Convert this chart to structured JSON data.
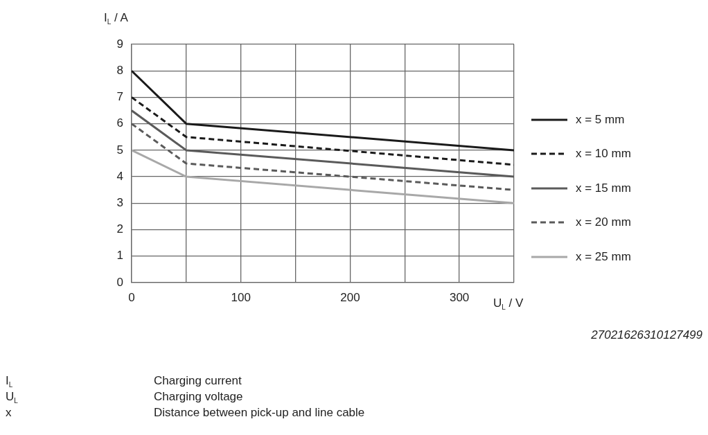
{
  "chart_data": {
    "type": "line",
    "ylabel": "I$_{L}$ / A",
    "xlabel": "U$_{L}$ / V",
    "x": [
      0,
      50,
      350
    ],
    "series": [
      {
        "name": "x = 5 mm",
        "color": "#1a1a1a",
        "line_style": "solid",
        "values": [
          8,
          6,
          5
        ]
      },
      {
        "name": "x = 10 mm",
        "color": "#1a1a1a",
        "line_style": "dashed",
        "values": [
          7,
          5.5,
          4.45
        ]
      },
      {
        "name": "x = 15 mm",
        "color": "#5a5a5a",
        "line_style": "solid",
        "values": [
          6.5,
          5,
          4
        ]
      },
      {
        "name": "x = 20 mm",
        "color": "#5a5a5a",
        "line_style": "dashed",
        "values": [
          6,
          4.5,
          3.5
        ]
      },
      {
        "name": "x = 25 mm",
        "color": "#a8a8a8",
        "line_style": "solid",
        "values": [
          5,
          4,
          3
        ]
      }
    ],
    "xlim": [
      0,
      350
    ],
    "xticks": [
      0,
      {
        "value": 50,
        "label": null
      },
      100,
      {
        "value": 150,
        "label": null
      },
      200,
      {
        "value": 250,
        "label": null
      },
      300,
      {
        "value": 350,
        "label": null
      }
    ],
    "ylim": [
      0,
      9
    ],
    "yticks": [
      0,
      1,
      2,
      3,
      4,
      5,
      6,
      7,
      8,
      9
    ],
    "grid": true,
    "legend": "right",
    "marker": "none",
    "annotations": [
      "27021626310127499",
      "I$_{L}$ Charging current",
      "U$_{L}$ Charging voltage",
      "x Distance between pick-up and line cable"
    ]
  }
}
